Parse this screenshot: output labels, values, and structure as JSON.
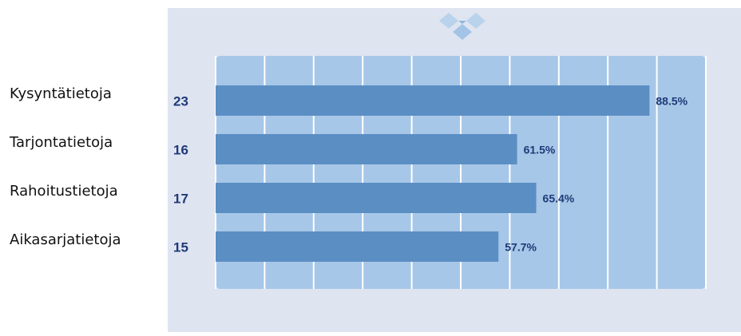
{
  "chart_data": {
    "type": "bar",
    "orientation": "horizontal",
    "categories": [
      "Kysyntätietoja",
      "Tarjontatietoja",
      "Rahoitustietoja",
      "Aikasarjatietoja"
    ],
    "counts": [
      23,
      16,
      17,
      15
    ],
    "values": [
      88.5,
      61.5,
      65.4,
      57.7
    ],
    "value_labels": [
      "88.5%",
      "61.5%",
      "65.4%",
      "57.7%"
    ],
    "color": "#5b8ec3",
    "xlim": [
      0,
      100
    ],
    "xticks": [
      0,
      10,
      20,
      30,
      40,
      50,
      60,
      70,
      80,
      90,
      100
    ],
    "grid": true
  }
}
